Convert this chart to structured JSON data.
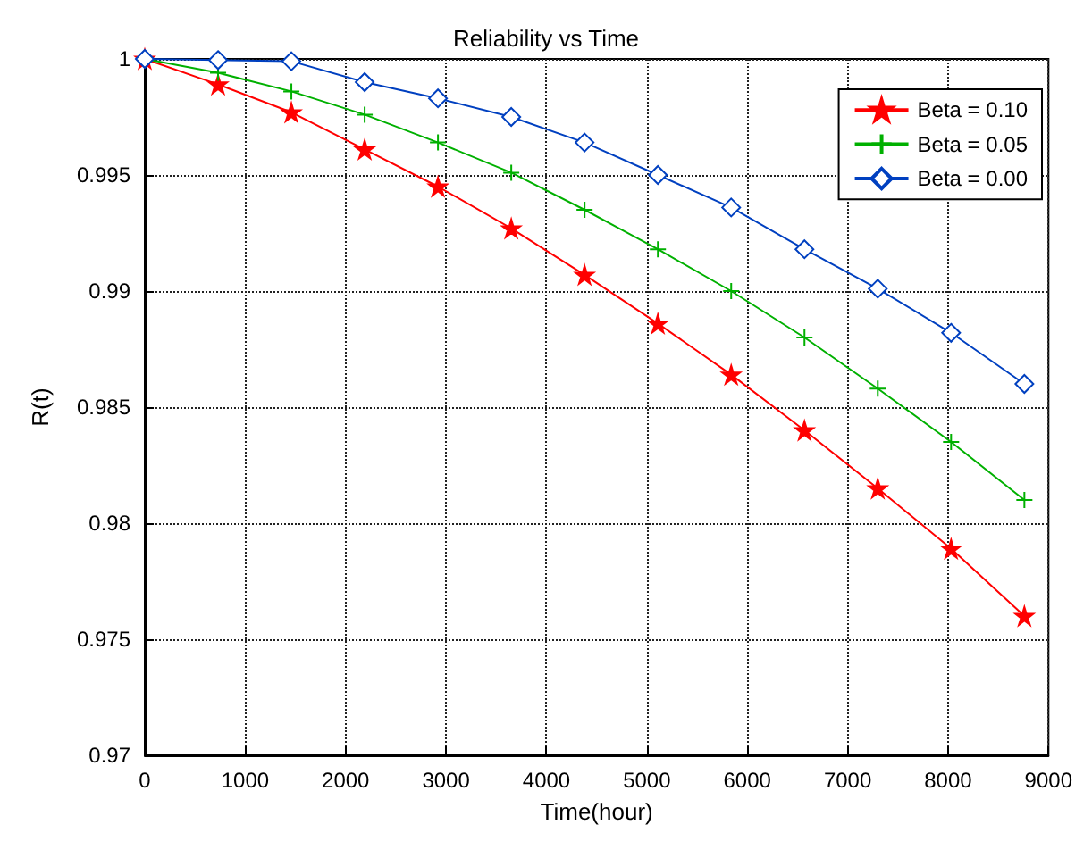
{
  "chart_data": {
    "type": "line",
    "title": "Reliability vs Time",
    "xlabel": "Time(hour)",
    "ylabel": "R(t)",
    "xlim": [
      0,
      9000
    ],
    "xticks": [
      0,
      1000,
      2000,
      3000,
      4000,
      5000,
      6000,
      7000,
      8000,
      9000
    ],
    "ylim": [
      0.97,
      1
    ],
    "yticks": [
      0.97,
      0.975,
      0.98,
      0.985,
      0.99,
      0.995,
      1
    ],
    "grid": true,
    "legend": "top right",
    "line_style": "solid",
    "x": [
      0,
      730,
      1460,
      2190,
      2920,
      3650,
      4380,
      5110,
      5840,
      6570,
      7300,
      8030,
      8760
    ],
    "series": [
      {
        "name": "Beta = 0.10",
        "color": "#ff0000",
        "marker": "star",
        "values": [
          1,
          0.9989,
          0.9977,
          0.9961,
          0.9945,
          0.9927,
          0.9907,
          0.9886,
          0.9864,
          0.984,
          0.9815,
          0.9789,
          0.976
        ]
      },
      {
        "name": "Beta = 0.05",
        "color": "#00b000",
        "marker": "cross",
        "values": [
          1,
          0.9994,
          0.9986,
          0.9976,
          0.9964,
          0.9951,
          0.9935,
          0.9918,
          0.99,
          0.988,
          0.9858,
          0.9835,
          0.981
        ]
      },
      {
        "name": "Beta = 0.00",
        "color": "#0040c0",
        "marker": "diamond",
        "values": [
          1,
          0.99995,
          0.9999,
          0.999,
          0.9983,
          0.9975,
          0.9964,
          0.995,
          0.9936,
          0.9918,
          0.9901,
          0.9882,
          0.986
        ]
      }
    ]
  }
}
